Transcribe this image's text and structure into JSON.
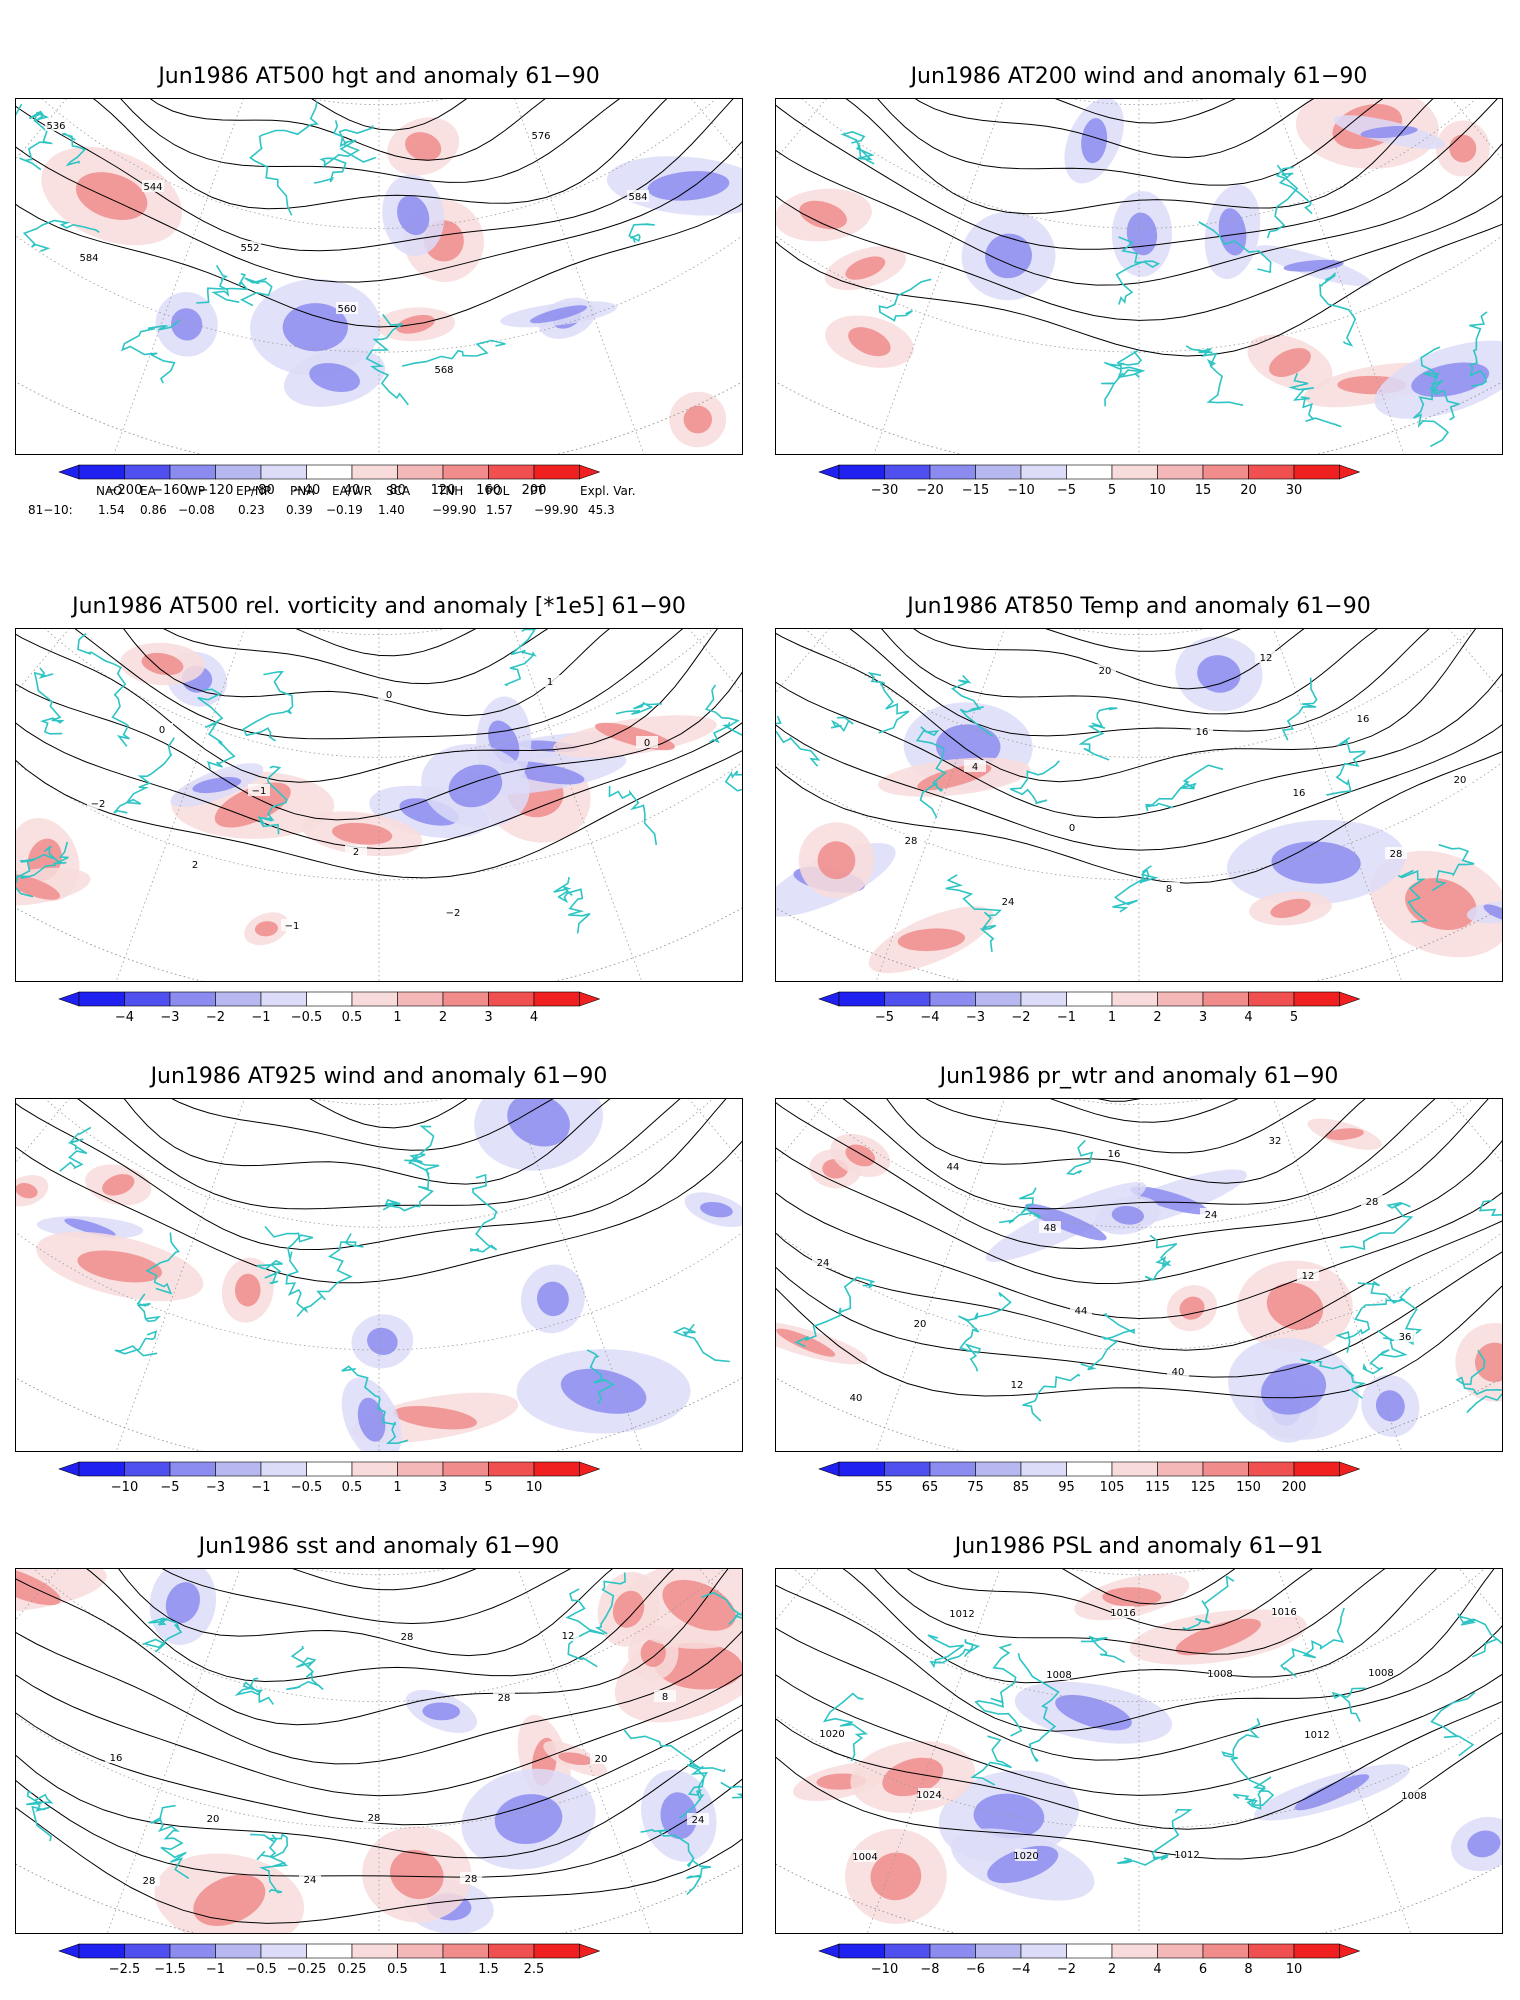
{
  "panels": [
    {
      "id": "p1",
      "title": "Jun1986 AT500 hgt and anomaly 61−90",
      "contour_labels": [
        "536",
        "544",
        "552",
        "560",
        "568",
        "576",
        "584",
        "584"
      ],
      "colorbar": [
        "−200",
        "−160",
        "−120",
        "−80",
        "−40",
        "40",
        "80",
        "120",
        "160",
        "200"
      ]
    },
    {
      "id": "p2",
      "title": "Jun1986 AT200 wind and anomaly 61−90",
      "contour_labels": [],
      "colorbar": [
        "−30",
        "−20",
        "−15",
        "−10",
        "−5",
        "5",
        "10",
        "15",
        "20",
        "30"
      ]
    },
    {
      "id": "p3",
      "title": "Jun1986 AT500 rel. vorticity and anomaly [*1e5] 61−90",
      "contour_labels": [
        "0",
        "−1",
        "2",
        "−2",
        "1",
        "0",
        "−2",
        "2",
        "−1",
        "0"
      ],
      "colorbar": [
        "−4",
        "−3",
        "−2",
        "−1",
        "−0.5",
        "0.5",
        "1",
        "2",
        "3",
        "4"
      ]
    },
    {
      "id": "p4",
      "title": "Jun1986 AT850 Temp and anomaly 61−90",
      "contour_labels": [
        "4",
        "0",
        "8",
        "12",
        "16",
        "20",
        "28",
        "24",
        "20",
        "16",
        "16",
        "28"
      ],
      "colorbar": [
        "−5",
        "−4",
        "−3",
        "−2",
        "−1",
        "1",
        "2",
        "3",
        "4",
        "5"
      ]
    },
    {
      "id": "p5",
      "title": "Jun1986 AT925 wind and anomaly 61−90",
      "contour_labels": [],
      "colorbar": [
        "−10",
        "−5",
        "−3",
        "−1",
        "−0.5",
        "0.5",
        "1",
        "3",
        "5",
        "10"
      ]
    },
    {
      "id": "p6",
      "title": "Jun1986 pr_wtr and anomaly 61−90",
      "contour_labels": [
        "44",
        "40",
        "32",
        "28",
        "24",
        "20",
        "12",
        "16",
        "24",
        "12",
        "36",
        "40",
        "44",
        "48"
      ],
      "colorbar": [
        "55",
        "65",
        "75",
        "85",
        "95",
        "105",
        "115",
        "125",
        "150",
        "200"
      ]
    },
    {
      "id": "p7",
      "title": "Jun1986 sst and anomaly 61−90",
      "contour_labels": [
        "28",
        "28",
        "12",
        "8",
        "16",
        "20",
        "24",
        "28",
        "28",
        "20",
        "24",
        "28"
      ],
      "colorbar": [
        "−2.5",
        "−1.5",
        "−1",
        "−0.5",
        "−0.25",
        "0.25",
        "0.5",
        "1",
        "1.5",
        "2.5"
      ]
    },
    {
      "id": "p8",
      "title": "Jun1986 PSL and anomaly 61−91",
      "contour_labels": [
        "1012",
        "1016",
        "1008",
        "1020",
        "1024",
        "1020",
        "1016",
        "1008",
        "1012",
        "1008",
        "1004",
        "1012",
        "1008"
      ],
      "colorbar": [
        "−10",
        "−8",
        "−6",
        "−4",
        "−2",
        "2",
        "4",
        "6",
        "8",
        "10"
      ]
    }
  ],
  "teleconnections": {
    "headers": [
      "NAO",
      "EA",
      "WP",
      "EP/NP",
      "PNA",
      "EA/WR",
      "SCA",
      "TNH",
      "POL",
      "PT",
      "Expl. Var."
    ],
    "row_label": "81−10:",
    "values": [
      "1.54",
      "0.86",
      "−0.08",
      "0.23",
      "0.39",
      "−0.19",
      "1.40",
      "−99.90",
      "1.57",
      "−99.90",
      "45.3"
    ]
  },
  "colors": {
    "coast": "#2ec4c4",
    "blues": [
      "#2020f0",
      "#5050f0",
      "#8c8cf0",
      "#b8b8f0",
      "#dcdcf8"
    ],
    "reds": [
      "#f8dcdc",
      "#f4b8b8",
      "#f08c8c",
      "#f05050",
      "#f02020"
    ]
  }
}
